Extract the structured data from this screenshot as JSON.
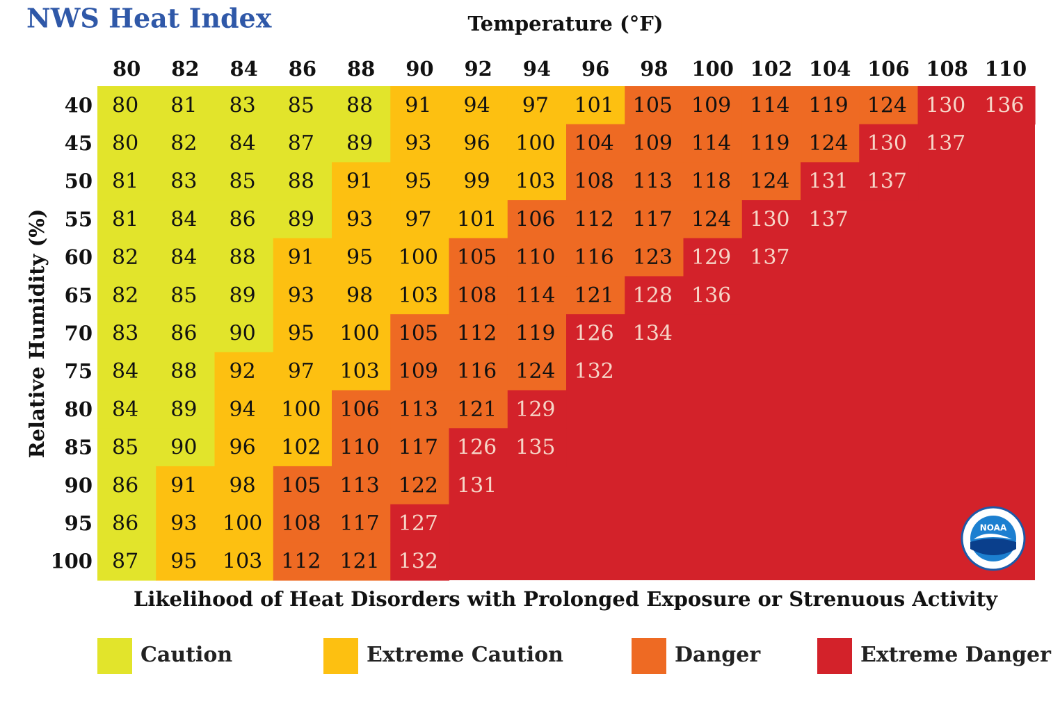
{
  "title": "NWS Heat Index",
  "x_axis_label": "Temperature (°F)",
  "y_axis_label": "Relative Humidity (%)",
  "footer": "Likelihood of Heat Disorders with Prolonged Exposure or Strenuous Activity",
  "logo_text": "NOAA",
  "table": {
    "columns": [
      80,
      82,
      84,
      86,
      88,
      90,
      92,
      94,
      96,
      98,
      100,
      102,
      104,
      106,
      108,
      110
    ],
    "row_labels": [
      40,
      45,
      50,
      55,
      60,
      65,
      70,
      75,
      80,
      85,
      90,
      95,
      100
    ],
    "rows": [
      [
        80,
        81,
        83,
        85,
        88,
        91,
        94,
        97,
        101,
        105,
        109,
        114,
        119,
        124,
        130,
        136
      ],
      [
        80,
        82,
        84,
        87,
        89,
        93,
        96,
        100,
        104,
        109,
        114,
        119,
        124,
        130,
        137
      ],
      [
        81,
        83,
        85,
        88,
        91,
        95,
        99,
        103,
        108,
        113,
        118,
        124,
        131,
        137
      ],
      [
        81,
        84,
        86,
        89,
        93,
        97,
        101,
        106,
        112,
        117,
        124,
        130,
        137
      ],
      [
        82,
        84,
        88,
        91,
        95,
        100,
        105,
        110,
        116,
        123,
        129,
        137
      ],
      [
        82,
        85,
        89,
        93,
        98,
        103,
        108,
        114,
        121,
        128,
        136
      ],
      [
        83,
        86,
        90,
        95,
        100,
        105,
        112,
        119,
        126,
        134
      ],
      [
        84,
        88,
        92,
        97,
        103,
        109,
        116,
        124,
        132
      ],
      [
        84,
        89,
        94,
        100,
        106,
        113,
        121,
        129
      ],
      [
        85,
        90,
        96,
        102,
        110,
        117,
        126,
        135
      ],
      [
        86,
        91,
        98,
        105,
        113,
        122,
        131
      ],
      [
        86,
        93,
        100,
        108,
        117,
        127
      ],
      [
        87,
        95,
        103,
        112,
        121,
        132
      ]
    ]
  },
  "legend": [
    {
      "label": "Caution",
      "color": "#e2e42b",
      "text_color": "#111111",
      "min": 80
    },
    {
      "label": "Extreme Caution",
      "color": "#fdc011",
      "text_color": "#111111",
      "min": 91
    },
    {
      "label": "Danger",
      "color": "#ee6a23",
      "text_color": "#111111",
      "min": 104
    },
    {
      "label": "Extreme Danger",
      "color": "#d3222a",
      "text_color": "#f6d6c8",
      "min": 125
    }
  ]
}
